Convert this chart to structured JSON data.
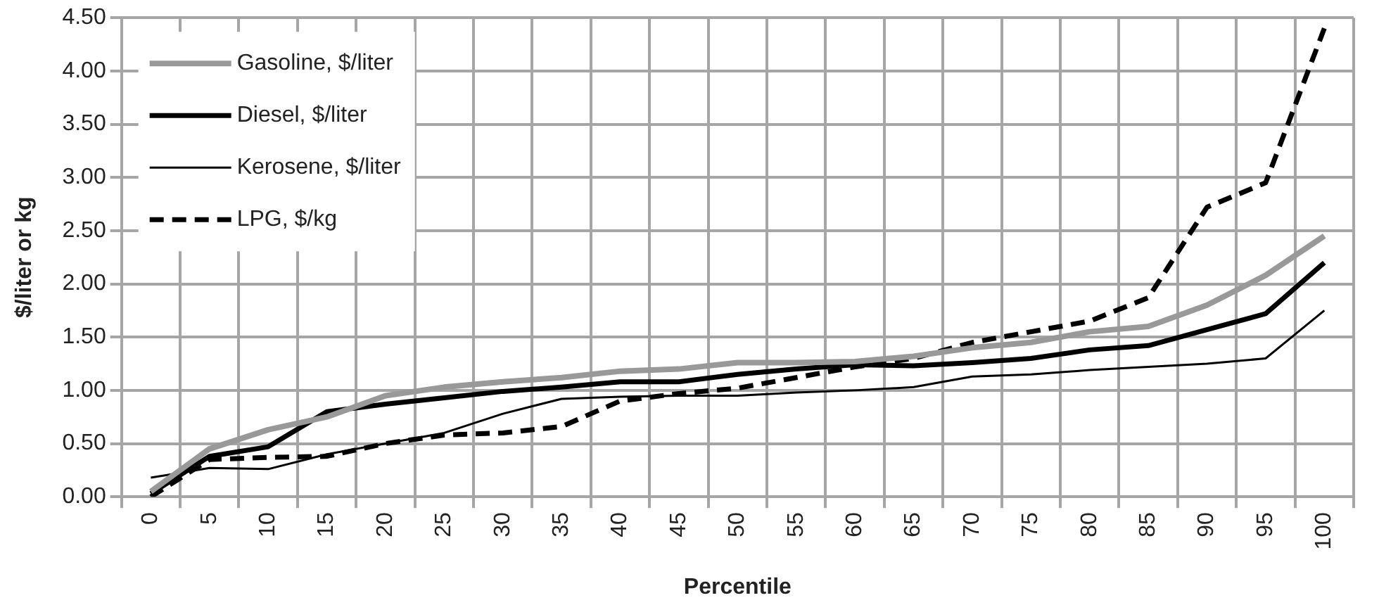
{
  "chart_data": {
    "type": "line",
    "xlabel": "Percentile",
    "ylabel": "$/liter or kg",
    "categories": [
      "0",
      "5",
      "10",
      "15",
      "20",
      "25",
      "30",
      "35",
      "40",
      "45",
      "50",
      "55",
      "60",
      "65",
      "70",
      "75",
      "80",
      "85",
      "90",
      "95",
      "100"
    ],
    "series": [
      {
        "name": "Gasoline, $/liter",
        "color": "#999999",
        "line_style": "solid",
        "values": [
          0.05,
          0.45,
          0.63,
          0.75,
          0.95,
          1.03,
          1.08,
          1.12,
          1.18,
          1.2,
          1.26,
          1.26,
          1.27,
          1.32,
          1.4,
          1.45,
          1.55,
          1.6,
          1.8,
          2.08,
          2.45
        ]
      },
      {
        "name": "Diesel, $/liter",
        "color": "#000000",
        "line_style": "solid",
        "values": [
          0.03,
          0.38,
          0.47,
          0.8,
          0.87,
          0.93,
          0.99,
          1.03,
          1.08,
          1.08,
          1.15,
          1.2,
          1.24,
          1.23,
          1.26,
          1.3,
          1.38,
          1.42,
          1.57,
          1.72,
          2.2
        ]
      },
      {
        "name": "Kerosene, $/liter",
        "color": "#000000",
        "line_style": "solid",
        "values": [
          0.18,
          0.27,
          0.26,
          0.4,
          0.5,
          0.6,
          0.78,
          0.92,
          0.94,
          0.95,
          0.95,
          0.98,
          1.0,
          1.03,
          1.13,
          1.15,
          1.19,
          1.22,
          1.25,
          1.3,
          1.75
        ]
      },
      {
        "name": "LPG, $/kg",
        "color": "#000000",
        "line_style": "dashed",
        "values": [
          0.0,
          0.35,
          0.37,
          0.38,
          0.5,
          0.58,
          0.6,
          0.66,
          0.9,
          0.97,
          1.02,
          1.12,
          1.22,
          1.3,
          1.45,
          1.55,
          1.65,
          1.87,
          2.72,
          2.95,
          4.4
        ]
      }
    ],
    "ylim": [
      0,
      4.5
    ],
    "yticks": [
      {
        "value": 0,
        "label": "0.00"
      },
      {
        "value": 0.5,
        "label": "0.50"
      },
      {
        "value": 1,
        "label": "1.00"
      },
      {
        "value": 1.5,
        "label": "1.50"
      },
      {
        "value": 2,
        "label": "2.00"
      },
      {
        "value": 2.5,
        "label": "2.50"
      },
      {
        "value": 3,
        "label": "3.00"
      },
      {
        "value": 3.5,
        "label": "3.50"
      },
      {
        "value": 4,
        "label": "4.00"
      },
      {
        "value": 4.5,
        "label": "4.50"
      }
    ],
    "grid": true,
    "legend": "top left",
    "marker": "none"
  }
}
